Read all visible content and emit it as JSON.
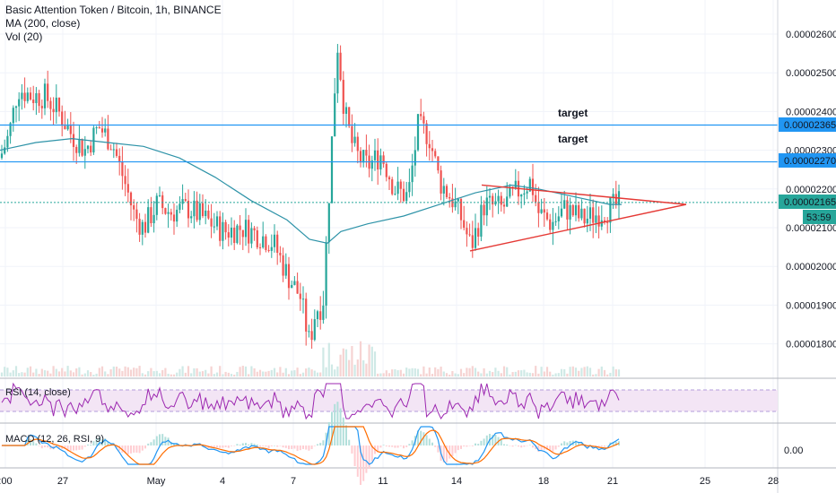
{
  "header": {
    "title": "Basic Attention Token / Bitcoin, 1h, BINANCE",
    "ma_label": "MA (200, close)",
    "vol_label": "Vol (20)"
  },
  "indicators": {
    "rsi_label": "RSI (14, close)",
    "macd_label": "MACD (12, 26, RSI, 9)",
    "macd_axis_value": "0.00"
  },
  "annotations": {
    "target_upper": "target",
    "target_lower": "target"
  },
  "price_labels": {
    "level_upper": "0.00002365",
    "level_lower": "0.00002270",
    "last_price": "0.00002165",
    "countdown": "53:59"
  },
  "colors": {
    "up": "#26a69a",
    "down": "#ef5350",
    "ma": "#2e93a8",
    "hline": "#2196f3",
    "triangle": "#e53935",
    "rsi_line": "#9c27b0",
    "rsi_band": "#f3e5f5",
    "macd_line": "#2196f3",
    "signal_line": "#ff6d00"
  },
  "chart_data": {
    "type": "candlestick",
    "symbol": "Basic Attention Token / Bitcoin",
    "interval": "1h",
    "exchange": "BINANCE",
    "y_ticks": [
      1.8e-05,
      1.9e-05,
      2e-05,
      2.1e-05,
      2.2e-05,
      2.3e-05,
      2.4e-05,
      2.5e-05,
      2.6e-05
    ],
    "y_tick_labels": [
      "0.00001800",
      "0.00001900",
      "0.00002000",
      "0.00002100",
      "0.00002200",
      "0.00002300",
      "0.00002400",
      "0.00002500",
      "0.00002600"
    ],
    "x_tick_labels": [
      ":00",
      "27",
      "May",
      "4",
      "7",
      "11",
      "14",
      "18",
      "21",
      "25",
      "28"
    ],
    "price_path": [
      [
        0,
        2.28e-05
      ],
      [
        10,
        2.34e-05
      ],
      [
        20,
        2.46e-05
      ],
      [
        35,
        2.44e-05
      ],
      [
        50,
        2.44e-05
      ],
      [
        65,
        2.4e-05
      ],
      [
        80,
        2.34e-05
      ],
      [
        95,
        2.3e-05
      ],
      [
        110,
        2.36e-05
      ],
      [
        125,
        2.32e-05
      ],
      [
        140,
        2.21e-05
      ],
      [
        150,
        2.13e-05
      ],
      [
        160,
        2.1e-05
      ],
      [
        175,
        2.16e-05
      ],
      [
        190,
        2.14e-05
      ],
      [
        210,
        2.15e-05
      ],
      [
        230,
        2.12e-05
      ],
      [
        250,
        2.09e-05
      ],
      [
        270,
        2.1e-05
      ],
      [
        290,
        2.08e-05
      ],
      [
        305,
        2.06e-05
      ],
      [
        320,
        1.98e-05
      ],
      [
        335,
        1.92e-05
      ],
      [
        345,
        1.8e-05
      ],
      [
        352,
        1.89e-05
      ],
      [
        360,
        1.9e-05
      ],
      [
        368,
        2.24e-05
      ],
      [
        376,
        2.58e-05
      ],
      [
        384,
        2.4e-05
      ],
      [
        392,
        2.32e-05
      ],
      [
        400,
        2.28e-05
      ],
      [
        410,
        2.26e-05
      ],
      [
        425,
        2.29e-05
      ],
      [
        440,
        2.2e-05
      ],
      [
        455,
        2.18e-05
      ],
      [
        466,
        2.36e-05
      ],
      [
        478,
        2.34e-05
      ],
      [
        490,
        2.22e-05
      ],
      [
        505,
        2.17e-05
      ],
      [
        515,
        2.12e-05
      ],
      [
        525,
        2.05e-05
      ],
      [
        540,
        2.16e-05
      ],
      [
        560,
        2.15e-05
      ],
      [
        575,
        2.19e-05
      ],
      [
        592,
        2.22e-05
      ],
      [
        600,
        2.14e-05
      ],
      [
        615,
        2.11e-05
      ],
      [
        630,
        2.15e-05
      ],
      [
        650,
        2.12e-05
      ],
      [
        670,
        2.14e-05
      ],
      [
        690,
        2.16e-05
      ],
      [
        693,
        2.16e-05
      ]
    ],
    "ma_path": [
      [
        0,
        2.3e-05
      ],
      [
        40,
        2.32e-05
      ],
      [
        80,
        2.33e-05
      ],
      [
        120,
        2.32e-05
      ],
      [
        160,
        2.31e-05
      ],
      [
        200,
        2.28e-05
      ],
      [
        240,
        2.23e-05
      ],
      [
        280,
        2.17e-05
      ],
      [
        320,
        2.12e-05
      ],
      [
        345,
        2.07e-05
      ],
      [
        365,
        2.06e-05
      ],
      [
        380,
        2.09e-05
      ],
      [
        410,
        2.11e-05
      ],
      [
        450,
        2.13e-05
      ],
      [
        490,
        2.16e-05
      ],
      [
        530,
        2.19e-05
      ],
      [
        570,
        2.21e-05
      ],
      [
        600,
        2.2e-05
      ],
      [
        640,
        2.18e-05
      ],
      [
        680,
        2.16e-05
      ],
      [
        693,
        2.16e-05
      ]
    ],
    "horizontal_levels": [
      2.365e-05,
      2.27e-05
    ],
    "last_price": 2.165e-05,
    "triangle": {
      "upper": [
        [
          537,
          2.21e-05
        ],
        [
          765,
          2.16e-05
        ]
      ],
      "lower": [
        [
          524,
          2.04e-05
        ],
        [
          765,
          2.16e-05
        ]
      ]
    },
    "rsi_band": [
      30,
      70
    ],
    "macd_zero": 0
  }
}
